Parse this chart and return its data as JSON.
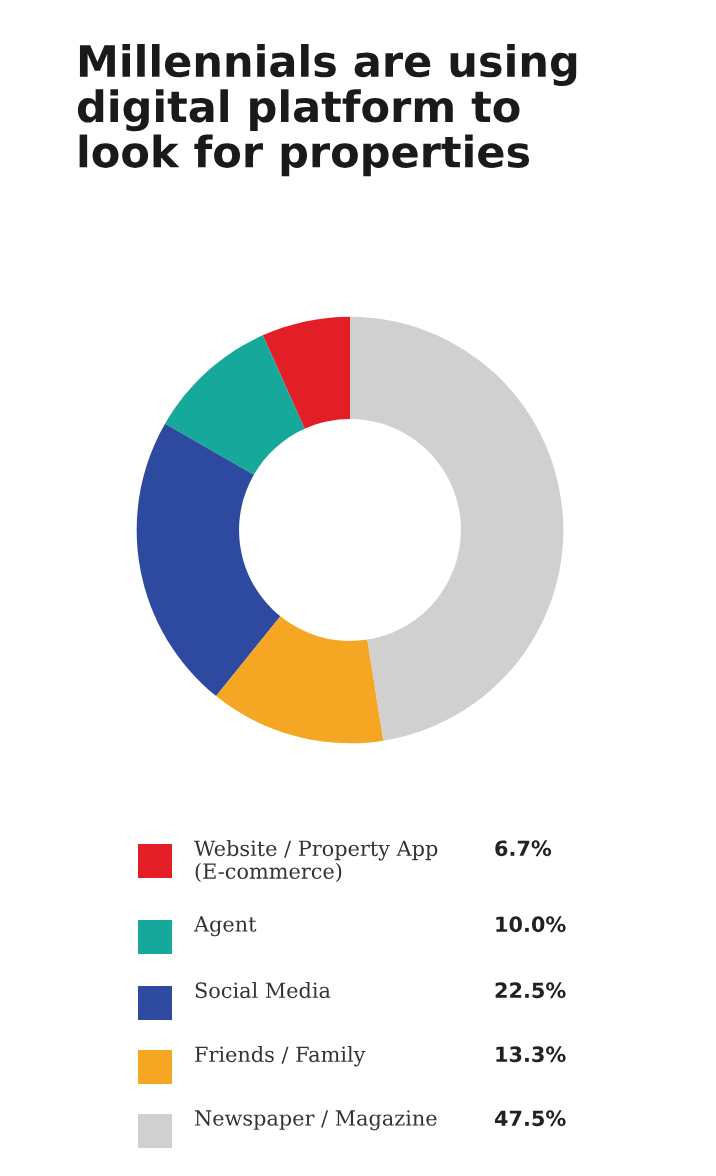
{
  "chart_data": {
    "type": "donut",
    "title": "Millennials are using\ndigital platform to\nlook for properties",
    "categories": [
      "Website / Property App\n(E-commerce)",
      "Agent",
      "Social Media",
      "Friends / Family",
      "Newspaper / Magazine"
    ],
    "values": [
      6.7,
      10.0,
      22.5,
      13.3,
      47.5
    ],
    "value_labels": [
      "6.7%",
      "10.0%",
      "22.5%",
      "13.3%",
      "47.5%"
    ],
    "colors": [
      "#e41e26",
      "#16a89a",
      "#2e4aa0",
      "#f5a623",
      "#d0d0d0"
    ],
    "legend": "bottom"
  }
}
